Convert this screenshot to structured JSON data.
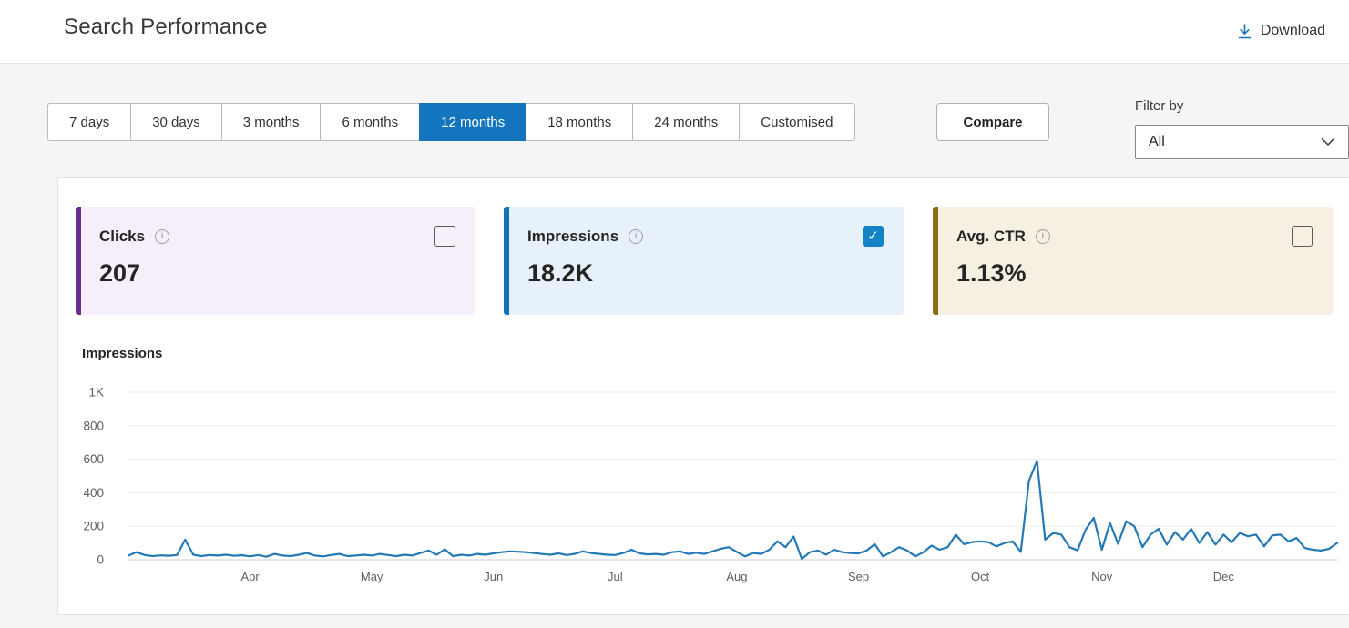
{
  "header": {
    "title": "Search Performance",
    "download_label": "Download"
  },
  "toolbar": {
    "range_tabs": [
      {
        "id": "7-days",
        "label": "7 days",
        "active": false
      },
      {
        "id": "30-days",
        "label": "30 days",
        "active": false
      },
      {
        "id": "3-months",
        "label": "3 months",
        "active": false
      },
      {
        "id": "6-months",
        "label": "6 months",
        "active": false
      },
      {
        "id": "12-months",
        "label": "12 months",
        "active": true
      },
      {
        "id": "18-months",
        "label": "18 months",
        "active": false
      },
      {
        "id": "24-months",
        "label": "24 months",
        "active": false
      },
      {
        "id": "customised",
        "label": "Customised",
        "active": false
      }
    ],
    "compare_label": "Compare",
    "filter_label": "Filter by",
    "filter_value": "All"
  },
  "metric_cards": [
    {
      "id": "clicks",
      "label": "Clicks",
      "value": "207",
      "checked": false,
      "accent": "#6b2f91",
      "bg": "#f6eff9"
    },
    {
      "id": "impressions",
      "label": "Impressions",
      "value": "18.2K",
      "checked": true,
      "accent": "#1173b8",
      "bg": "#e7f1fb"
    },
    {
      "id": "avg-ctr",
      "label": "Avg. CTR",
      "value": "1.13%",
      "checked": false,
      "accent": "#8a6c1a",
      "bg": "#f5f0e2"
    }
  ],
  "icons": {
    "download": "↓",
    "chevron_down": "⌄",
    "info": "i",
    "check": "✓"
  },
  "colors": {
    "accent_blue": "#1375bd",
    "checkbox_checked": "#1183c6",
    "chart_line": "#2579b4",
    "grid_line": "#ededed",
    "axis_line": "#cfcdcb",
    "tick_text": "#605e5c"
  },
  "chart": {
    "title": "Impressions"
  },
  "chart_data": {
    "type": "line",
    "title": "Impressions",
    "series_name": "Impressions",
    "xlabel": "",
    "ylabel": "",
    "ylim": [
      0,
      1000
    ],
    "grid": true,
    "legend": "none",
    "yticks": [
      {
        "value": 0,
        "label": "0"
      },
      {
        "value": 200,
        "label": "200"
      },
      {
        "value": 400,
        "label": "400"
      },
      {
        "value": 600,
        "label": "600"
      },
      {
        "value": 800,
        "label": "800"
      },
      {
        "value": 1000,
        "label": "1K"
      }
    ],
    "x_months": [
      {
        "label": "Apr",
        "index": 15
      },
      {
        "label": "May",
        "index": 30
      },
      {
        "label": "Jun",
        "index": 45
      },
      {
        "label": "Jul",
        "index": 60
      },
      {
        "label": "Aug",
        "index": 75
      },
      {
        "label": "Sep",
        "index": 90
      },
      {
        "label": "Oct",
        "index": 105
      },
      {
        "label": "Nov",
        "index": 120
      },
      {
        "label": "Dec",
        "index": 135
      }
    ],
    "values": [
      25,
      45,
      28,
      22,
      26,
      24,
      28,
      120,
      30,
      22,
      28,
      25,
      30,
      24,
      27,
      20,
      28,
      18,
      35,
      25,
      22,
      30,
      40,
      25,
      20,
      28,
      35,
      22,
      25,
      30,
      25,
      35,
      28,
      22,
      30,
      25,
      40,
      55,
      30,
      62,
      22,
      30,
      25,
      35,
      30,
      38,
      45,
      50,
      48,
      45,
      40,
      34,
      30,
      38,
      28,
      35,
      50,
      40,
      35,
      30,
      28,
      40,
      60,
      38,
      32,
      35,
      30,
      45,
      50,
      35,
      42,
      35,
      50,
      65,
      75,
      47,
      20,
      40,
      35,
      60,
      110,
      75,
      138,
      5,
      45,
      55,
      30,
      60,
      45,
      40,
      38,
      55,
      93,
      20,
      45,
      75,
      55,
      20,
      45,
      84,
      60,
      75,
      150,
      93,
      105,
      110,
      105,
      80,
      100,
      110,
      47,
      470,
      590,
      120,
      160,
      150,
      75,
      56,
      180,
      250,
      60,
      220,
      95,
      230,
      200,
      75,
      150,
      185,
      90,
      165,
      120,
      185,
      100,
      165,
      90,
      150,
      105,
      160,
      140,
      150,
      80,
      145,
      150,
      110,
      130,
      70,
      60,
      55,
      65,
      100
    ]
  }
}
